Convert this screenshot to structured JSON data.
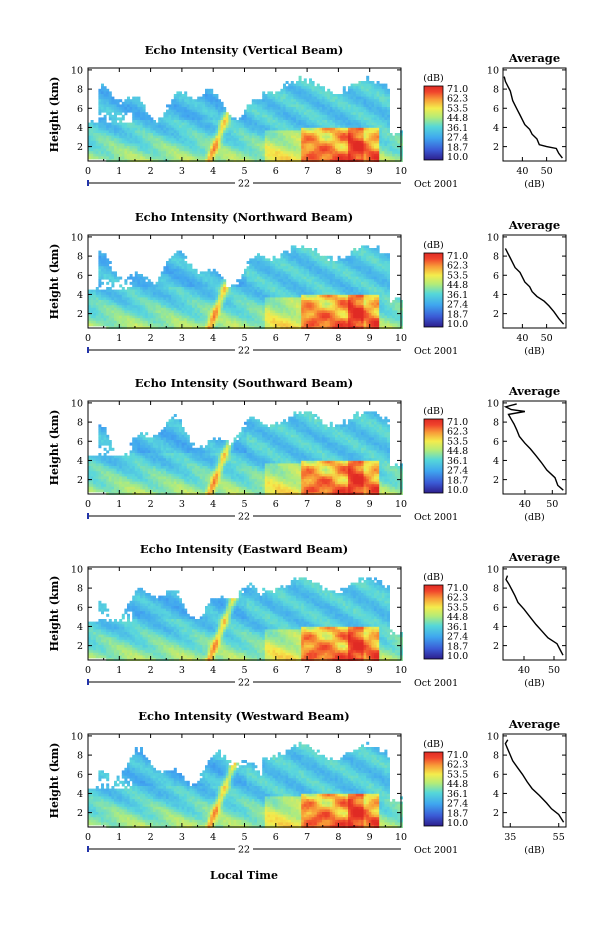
{
  "figure": {
    "xaxis_label": "Local Time"
  },
  "chart_data": [
    {
      "type": "heatmap",
      "title": "Echo Intensity (Vertical Beam)",
      "ylabel": "Height (km)",
      "x_ticks": [
        "0",
        "1",
        "2",
        "3",
        "4",
        "5",
        "6",
        "7",
        "8",
        "9",
        "10"
      ],
      "y_ticks": [
        "2",
        "4",
        "6",
        "8",
        "10"
      ],
      "xlim": [
        0,
        10
      ],
      "ylim": [
        0.5,
        10.2
      ],
      "date_day": "22",
      "date_label": "Oct 2001",
      "colorbar": {
        "label": "(dB)",
        "levels": [
          "71.0",
          "62.3",
          "53.5",
          "44.8",
          "36.1",
          "27.4",
          "18.7",
          "10.0"
        ]
      },
      "profile": {
        "title": "Average",
        "xlabel": "(dB)",
        "x_ticks": [
          "40",
          "50"
        ],
        "xlim": [
          32,
          58
        ],
        "y_ticks": [
          "2",
          "4",
          "6",
          "8",
          "10"
        ],
        "points": [
          [
            56.5,
            0.8
          ],
          [
            55,
            1.3
          ],
          [
            54,
            1.8
          ],
          [
            50,
            2.0
          ],
          [
            47,
            2.2
          ],
          [
            46,
            2.8
          ],
          [
            44,
            3.3
          ],
          [
            43,
            3.8
          ],
          [
            41,
            4.3
          ],
          [
            40,
            4.8
          ],
          [
            39,
            5.3
          ],
          [
            38,
            5.8
          ],
          [
            37,
            6.3
          ],
          [
            36,
            6.8
          ],
          [
            35.5,
            7.3
          ],
          [
            35,
            7.8
          ],
          [
            34,
            8.3
          ],
          [
            33,
            8.8
          ],
          [
            32.5,
            9.3
          ]
        ]
      }
    },
    {
      "type": "heatmap",
      "title": "Echo Intensity (Northward Beam)",
      "ylabel": "Height (km)",
      "x_ticks": [
        "0",
        "1",
        "2",
        "3",
        "4",
        "5",
        "6",
        "7",
        "8",
        "9",
        "10"
      ],
      "y_ticks": [
        "2",
        "4",
        "6",
        "8",
        "10"
      ],
      "xlim": [
        0,
        10
      ],
      "ylim": [
        0.5,
        10.2
      ],
      "date_day": "22",
      "date_label": "Oct 2001",
      "colorbar": {
        "label": "(dB)",
        "levels": [
          "71.0",
          "62.3",
          "53.5",
          "44.8",
          "36.1",
          "27.4",
          "18.7",
          "10.0"
        ]
      },
      "profile": {
        "title": "Average",
        "xlabel": "(dB)",
        "x_ticks": [
          "40",
          "50"
        ],
        "xlim": [
          32,
          58
        ],
        "y_ticks": [
          "2",
          "4",
          "6",
          "8",
          "10"
        ],
        "points": [
          [
            57,
            0.9
          ],
          [
            55,
            1.5
          ],
          [
            53,
            2.2
          ],
          [
            51,
            2.8
          ],
          [
            49,
            3.3
          ],
          [
            46,
            3.8
          ],
          [
            44,
            4.3
          ],
          [
            43,
            4.8
          ],
          [
            41,
            5.3
          ],
          [
            40,
            5.8
          ],
          [
            39,
            6.3
          ],
          [
            37,
            6.8
          ],
          [
            36,
            7.3
          ],
          [
            35,
            7.8
          ],
          [
            34,
            8.3
          ],
          [
            33,
            8.8
          ]
        ]
      }
    },
    {
      "type": "heatmap",
      "title": "Echo Intensity (Southward Beam)",
      "ylabel": "Height (km)",
      "x_ticks": [
        "0",
        "1",
        "2",
        "3",
        "4",
        "5",
        "6",
        "7",
        "8",
        "9",
        "10"
      ],
      "y_ticks": [
        "2",
        "4",
        "6",
        "8",
        "10"
      ],
      "xlim": [
        0,
        10
      ],
      "ylim": [
        0.5,
        10.2
      ],
      "date_day": "22",
      "date_label": "Oct 2001",
      "colorbar": {
        "label": "(dB)",
        "levels": [
          "71.0",
          "62.3",
          "53.5",
          "44.8",
          "36.1",
          "27.4",
          "18.7",
          "10.0"
        ]
      },
      "profile": {
        "title": "Average",
        "xlabel": "(dB)",
        "x_ticks": [
          "40",
          "50"
        ],
        "xlim": [
          32,
          55
        ],
        "y_ticks": [
          "2",
          "4",
          "6",
          "8",
          "10"
        ],
        "points": [
          [
            54,
            0.9
          ],
          [
            52,
            1.4
          ],
          [
            51,
            2.2
          ],
          [
            48,
            3.0
          ],
          [
            46,
            3.8
          ],
          [
            44,
            4.5
          ],
          [
            42,
            5.2
          ],
          [
            40,
            5.8
          ],
          [
            38,
            6.5
          ],
          [
            37,
            7.2
          ],
          [
            36,
            7.8
          ],
          [
            35,
            8.3
          ],
          [
            34,
            8.8
          ],
          [
            40,
            9.1
          ],
          [
            35,
            9.3
          ],
          [
            33,
            9.6
          ],
          [
            37,
            9.9
          ]
        ]
      }
    },
    {
      "type": "heatmap",
      "title": "Echo Intensity (Eastward Beam)",
      "ylabel": "Height (km)",
      "x_ticks": [
        "0",
        "1",
        "2",
        "3",
        "4",
        "5",
        "6",
        "7",
        "8",
        "9",
        "10"
      ],
      "y_ticks": [
        "2",
        "4",
        "6",
        "8",
        "10"
      ],
      "xlim": [
        0,
        10
      ],
      "ylim": [
        0.5,
        10.2
      ],
      "date_day": "22",
      "date_label": "Oct 2001",
      "colorbar": {
        "label": "(dB)",
        "levels": [
          "71.0",
          "62.3",
          "53.5",
          "44.8",
          "36.1",
          "27.4",
          "18.7",
          "10.0"
        ]
      },
      "profile": {
        "title": "Average",
        "xlabel": "(dB)",
        "x_ticks": [
          "40",
          "50"
        ],
        "xlim": [
          33,
          54
        ],
        "y_ticks": [
          "2",
          "4",
          "6",
          "8",
          "10"
        ],
        "points": [
          [
            53,
            1.0
          ],
          [
            52,
            1.6
          ],
          [
            51,
            2.2
          ],
          [
            48,
            2.8
          ],
          [
            46,
            3.5
          ],
          [
            44,
            4.2
          ],
          [
            42,
            5.0
          ],
          [
            40,
            5.8
          ],
          [
            38,
            6.5
          ],
          [
            37,
            7.2
          ],
          [
            36,
            7.8
          ],
          [
            35,
            8.4
          ],
          [
            34,
            8.9
          ],
          [
            34.5,
            9.3
          ]
        ]
      }
    },
    {
      "type": "heatmap",
      "title": "Echo Intensity (Westward Beam)",
      "ylabel": "Height (km)",
      "x_ticks": [
        "0",
        "1",
        "2",
        "3",
        "4",
        "5",
        "6",
        "7",
        "8",
        "9",
        "10"
      ],
      "y_ticks": [
        "2",
        "4",
        "6",
        "8",
        "10"
      ],
      "xlim": [
        0,
        10
      ],
      "ylim": [
        0.5,
        10.2
      ],
      "date_day": "22",
      "date_label": "Oct 2001",
      "colorbar": {
        "label": "(dB)",
        "levels": [
          "71.0",
          "62.3",
          "53.5",
          "44.8",
          "36.1",
          "27.4",
          "18.7",
          "10.0"
        ]
      },
      "profile": {
        "title": "Average",
        "xlabel": "(dB)",
        "x_ticks": [
          "35",
          "55"
        ],
        "xlim": [
          32,
          58
        ],
        "y_ticks": [
          "2",
          "4",
          "6",
          "8",
          "10"
        ],
        "points": [
          [
            57,
            1.0
          ],
          [
            55,
            1.8
          ],
          [
            52,
            2.4
          ],
          [
            50,
            3.0
          ],
          [
            47,
            3.8
          ],
          [
            44,
            4.5
          ],
          [
            42,
            5.2
          ],
          [
            40,
            6.0
          ],
          [
            38,
            6.7
          ],
          [
            36,
            7.4
          ],
          [
            35,
            8.0
          ],
          [
            34,
            8.6
          ],
          [
            33,
            9.2
          ],
          [
            34,
            9.6
          ]
        ]
      }
    }
  ]
}
